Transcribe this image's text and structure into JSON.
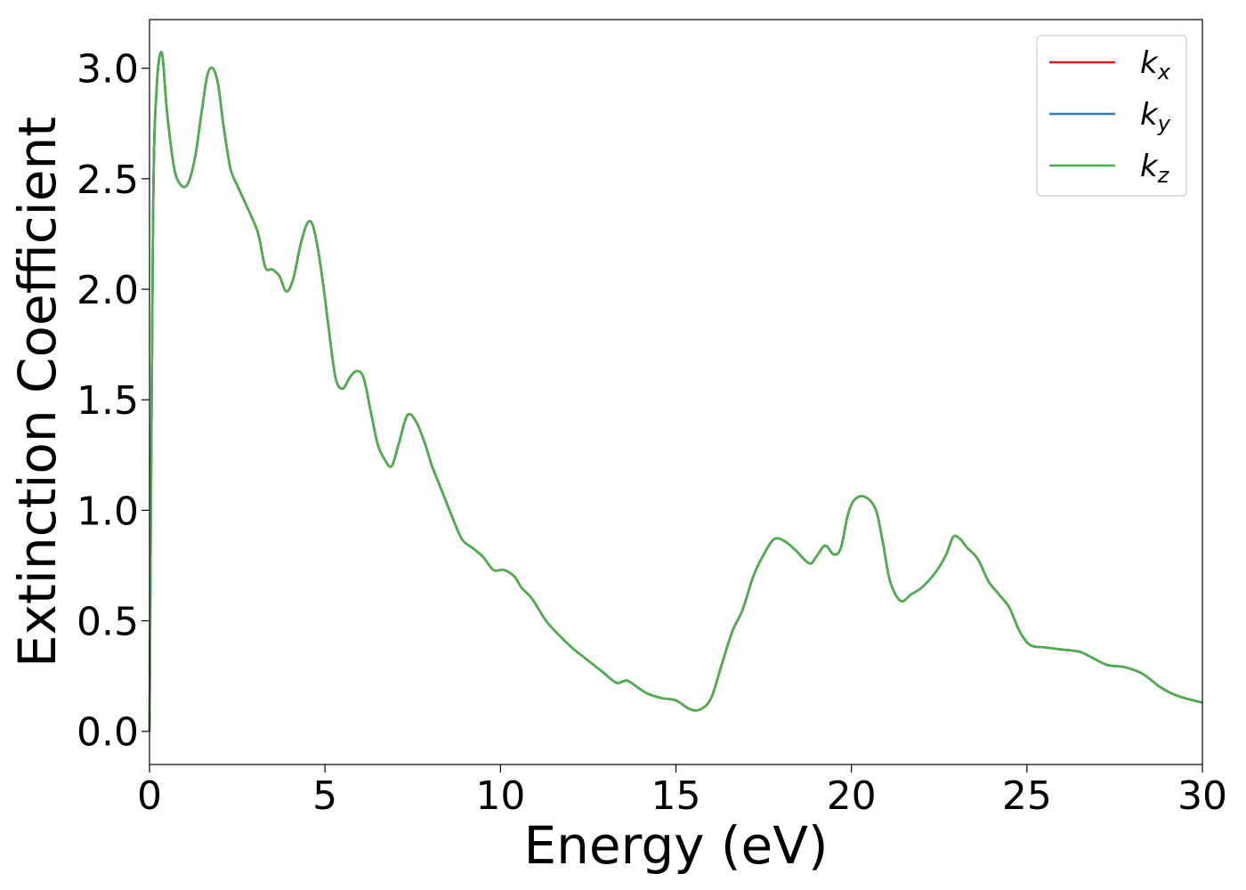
{
  "chart_data": {
    "type": "line",
    "xlabel": "Energy (eV)",
    "ylabel": "Extinction Coefficient",
    "xlim": [
      0,
      30
    ],
    "ylim": [
      -0.15,
      3.22
    ],
    "xticks": [
      0,
      5,
      10,
      15,
      20,
      25,
      30
    ],
    "yticks": [
      0.0,
      0.5,
      1.0,
      1.5,
      2.0,
      2.5,
      3.0
    ],
    "xtick_labels": [
      "0",
      "5",
      "10",
      "15",
      "20",
      "25",
      "30"
    ],
    "ytick_labels": [
      "0.0",
      "0.5",
      "1.0",
      "1.5",
      "2.0",
      "2.5",
      "3.0"
    ],
    "grid": false,
    "legend_position": "top-right",
    "x": [
      0,
      0.1,
      0.2,
      0.35,
      0.5,
      0.7,
      0.9,
      1.1,
      1.3,
      1.5,
      1.65,
      1.8,
      1.95,
      2.1,
      2.3,
      2.5,
      2.7,
      2.9,
      3.1,
      3.3,
      3.5,
      3.7,
      3.9,
      4.1,
      4.3,
      4.5,
      4.65,
      4.8,
      4.95,
      5.1,
      5.3,
      5.5,
      5.7,
      5.9,
      6.1,
      6.3,
      6.5,
      6.7,
      6.9,
      7.1,
      7.35,
      7.6,
      7.85,
      8.05,
      8.3,
      8.6,
      8.9,
      9.2,
      9.5,
      9.8,
      10.1,
      10.4,
      10.6,
      10.9,
      11.3,
      11.7,
      12.1,
      12.5,
      12.9,
      13.3,
      13.6,
      13.9,
      14.2,
      14.6,
      15.0,
      15.4,
      15.7,
      16.0,
      16.3,
      16.6,
      16.9,
      17.2,
      17.5,
      17.8,
      18.1,
      18.4,
      18.8,
      19.0,
      19.25,
      19.5,
      19.7,
      19.9,
      20.1,
      20.4,
      20.7,
      20.9,
      21.1,
      21.4,
      21.7,
      22.0,
      22.4,
      22.7,
      22.9,
      23.1,
      23.3,
      23.6,
      23.9,
      24.2,
      24.5,
      24.8,
      25.1,
      25.5,
      26.0,
      26.5,
      26.9,
      27.3,
      27.8,
      28.3,
      28.8,
      29.3,
      30.0
    ],
    "series": [
      {
        "name": "k_x",
        "label_main": "k",
        "label_sub": "x",
        "color": "#e41a1c",
        "values": [
          0.0,
          2.3,
          2.9,
          3.07,
          2.8,
          2.55,
          2.47,
          2.48,
          2.6,
          2.82,
          2.97,
          3.0,
          2.93,
          2.75,
          2.55,
          2.47,
          2.4,
          2.33,
          2.25,
          2.1,
          2.09,
          2.06,
          1.99,
          2.05,
          2.2,
          2.3,
          2.29,
          2.18,
          2.02,
          1.83,
          1.6,
          1.55,
          1.6,
          1.63,
          1.6,
          1.45,
          1.3,
          1.23,
          1.2,
          1.3,
          1.43,
          1.4,
          1.3,
          1.2,
          1.1,
          0.98,
          0.87,
          0.83,
          0.79,
          0.73,
          0.73,
          0.7,
          0.65,
          0.6,
          0.5,
          0.43,
          0.37,
          0.32,
          0.27,
          0.22,
          0.23,
          0.2,
          0.17,
          0.15,
          0.14,
          0.1,
          0.1,
          0.15,
          0.3,
          0.45,
          0.55,
          0.7,
          0.8,
          0.87,
          0.86,
          0.82,
          0.76,
          0.79,
          0.84,
          0.8,
          0.83,
          0.98,
          1.05,
          1.06,
          1.0,
          0.85,
          0.68,
          0.59,
          0.62,
          0.65,
          0.72,
          0.8,
          0.88,
          0.87,
          0.83,
          0.78,
          0.68,
          0.62,
          0.56,
          0.45,
          0.39,
          0.38,
          0.37,
          0.36,
          0.33,
          0.3,
          0.29,
          0.26,
          0.2,
          0.16,
          0.13
        ]
      },
      {
        "name": "k_y",
        "label_main": "k",
        "label_sub": "y",
        "color": "#377eb8",
        "values": [
          0.0,
          2.3,
          2.9,
          3.07,
          2.8,
          2.55,
          2.47,
          2.48,
          2.6,
          2.82,
          2.97,
          3.0,
          2.93,
          2.75,
          2.55,
          2.47,
          2.4,
          2.33,
          2.25,
          2.1,
          2.09,
          2.06,
          1.99,
          2.05,
          2.2,
          2.3,
          2.29,
          2.18,
          2.02,
          1.83,
          1.6,
          1.55,
          1.6,
          1.63,
          1.6,
          1.45,
          1.3,
          1.23,
          1.2,
          1.3,
          1.43,
          1.4,
          1.3,
          1.2,
          1.1,
          0.98,
          0.87,
          0.83,
          0.79,
          0.73,
          0.73,
          0.7,
          0.65,
          0.6,
          0.5,
          0.43,
          0.37,
          0.32,
          0.27,
          0.22,
          0.23,
          0.2,
          0.17,
          0.15,
          0.14,
          0.1,
          0.1,
          0.15,
          0.3,
          0.45,
          0.55,
          0.7,
          0.8,
          0.87,
          0.86,
          0.82,
          0.76,
          0.79,
          0.84,
          0.8,
          0.83,
          0.98,
          1.05,
          1.06,
          1.0,
          0.85,
          0.68,
          0.59,
          0.62,
          0.65,
          0.72,
          0.8,
          0.88,
          0.87,
          0.83,
          0.78,
          0.68,
          0.62,
          0.56,
          0.45,
          0.39,
          0.38,
          0.37,
          0.36,
          0.33,
          0.3,
          0.29,
          0.26,
          0.2,
          0.16,
          0.13
        ]
      },
      {
        "name": "k_z",
        "label_main": "k",
        "label_sub": "z",
        "color": "#4daf4a",
        "values": [
          0.0,
          2.3,
          2.9,
          3.07,
          2.8,
          2.55,
          2.47,
          2.48,
          2.6,
          2.82,
          2.97,
          3.0,
          2.93,
          2.75,
          2.55,
          2.47,
          2.4,
          2.33,
          2.25,
          2.1,
          2.09,
          2.06,
          1.99,
          2.05,
          2.2,
          2.3,
          2.29,
          2.18,
          2.02,
          1.83,
          1.6,
          1.55,
          1.6,
          1.63,
          1.6,
          1.45,
          1.3,
          1.23,
          1.2,
          1.3,
          1.43,
          1.4,
          1.3,
          1.2,
          1.1,
          0.98,
          0.87,
          0.83,
          0.79,
          0.73,
          0.73,
          0.7,
          0.65,
          0.6,
          0.5,
          0.43,
          0.37,
          0.32,
          0.27,
          0.22,
          0.23,
          0.2,
          0.17,
          0.15,
          0.14,
          0.1,
          0.1,
          0.15,
          0.3,
          0.45,
          0.55,
          0.7,
          0.8,
          0.87,
          0.86,
          0.82,
          0.76,
          0.79,
          0.84,
          0.8,
          0.83,
          0.98,
          1.05,
          1.06,
          1.0,
          0.85,
          0.68,
          0.59,
          0.62,
          0.65,
          0.72,
          0.8,
          0.88,
          0.87,
          0.83,
          0.78,
          0.68,
          0.62,
          0.56,
          0.45,
          0.39,
          0.38,
          0.37,
          0.36,
          0.33,
          0.3,
          0.29,
          0.26,
          0.2,
          0.16,
          0.13
        ]
      }
    ]
  }
}
